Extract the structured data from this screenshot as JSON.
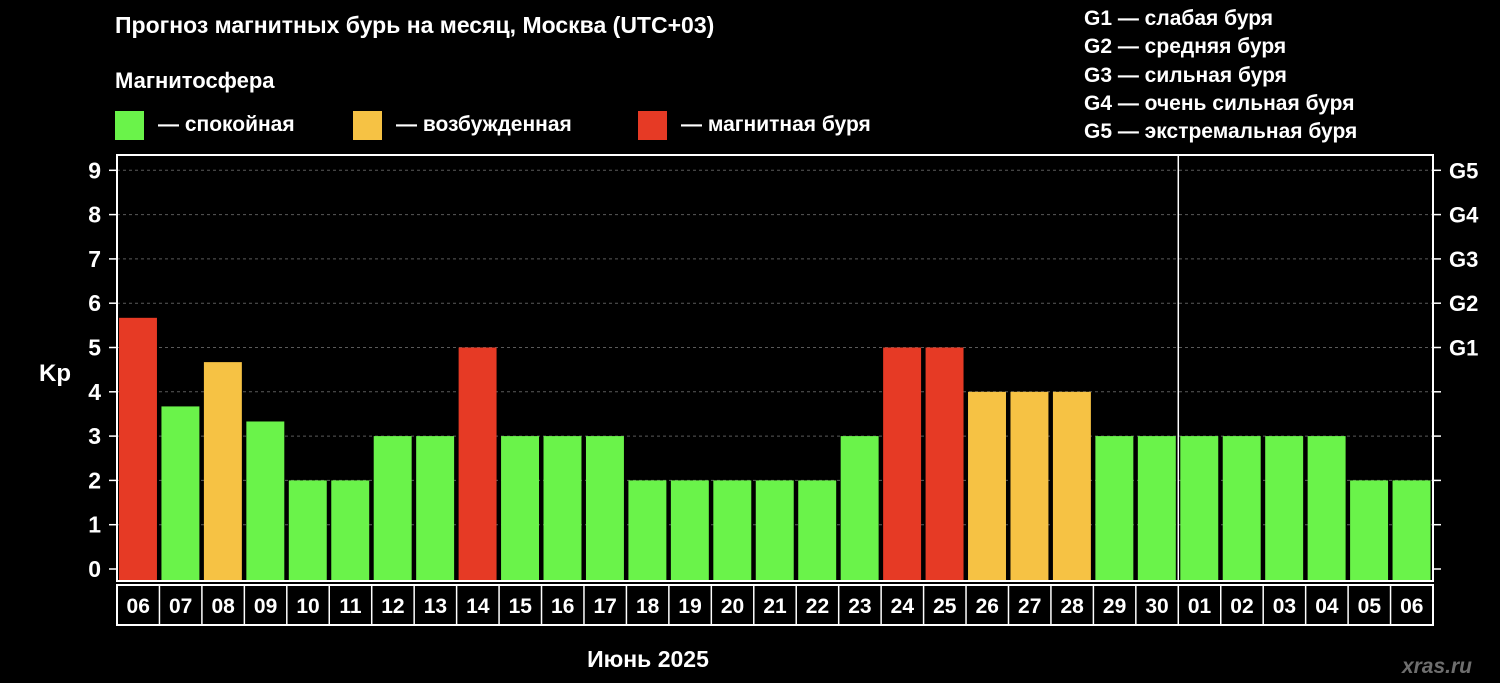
{
  "header": {
    "title": "Прогноз магнитных бурь на месяц, Москва (UTC+03)",
    "subtitle": "Магнитосфера"
  },
  "legend": [
    {
      "label": "— спокойная",
      "color": "#6af34a"
    },
    {
      "label": "— возбужденная",
      "color": "#f6c244"
    },
    {
      "label": "— магнитная буря",
      "color": "#e63a25"
    }
  ],
  "g_scale": [
    "G1 — слабая буря",
    "G2 — средняя буря",
    "G3 — сильная буря",
    "G4 — очень сильная буря",
    "G5 — экстремальная буря"
  ],
  "chart_data": {
    "type": "bar",
    "ylabel": "Kp",
    "xlabel": "Июнь 2025",
    "ylim": [
      0,
      9
    ],
    "yticks": [
      "0",
      "1",
      "2",
      "3",
      "4",
      "5",
      "6",
      "7",
      "8",
      "9"
    ],
    "right_ticks": [
      {
        "value": 5,
        "label": "G1"
      },
      {
        "value": 6,
        "label": "G2"
      },
      {
        "value": 7,
        "label": "G3"
      },
      {
        "value": 8,
        "label": "G4"
      },
      {
        "value": 9,
        "label": "G5"
      }
    ],
    "categories": [
      "06",
      "07",
      "08",
      "09",
      "10",
      "11",
      "12",
      "13",
      "14",
      "15",
      "16",
      "17",
      "18",
      "19",
      "20",
      "21",
      "22",
      "23",
      "24",
      "25",
      "26",
      "27",
      "28",
      "29",
      "30",
      "01",
      "02",
      "03",
      "04",
      "05",
      "06"
    ],
    "values": [
      5.67,
      3.67,
      4.67,
      3.33,
      2,
      2,
      3,
      3,
      5,
      3,
      3,
      3,
      2,
      2,
      2,
      2,
      2,
      3,
      5,
      5,
      4,
      4,
      4,
      3,
      3,
      3,
      3,
      3,
      3,
      2,
      2
    ],
    "status": [
      "storm",
      "quiet",
      "active",
      "quiet",
      "quiet",
      "quiet",
      "quiet",
      "quiet",
      "storm",
      "quiet",
      "quiet",
      "quiet",
      "quiet",
      "quiet",
      "quiet",
      "quiet",
      "quiet",
      "quiet",
      "storm",
      "storm",
      "active",
      "active",
      "active",
      "quiet",
      "quiet",
      "quiet",
      "quiet",
      "quiet",
      "quiet",
      "quiet",
      "quiet"
    ],
    "month_divider_before": "01",
    "grid": true,
    "grid_style": "dashed",
    "colors": {
      "quiet": "#6af34a",
      "active": "#f6c244",
      "storm": "#e63a25",
      "background": "#000000",
      "foreground": "#ffffff",
      "grid": "#5a5a5a"
    }
  },
  "source": "xras.ru"
}
